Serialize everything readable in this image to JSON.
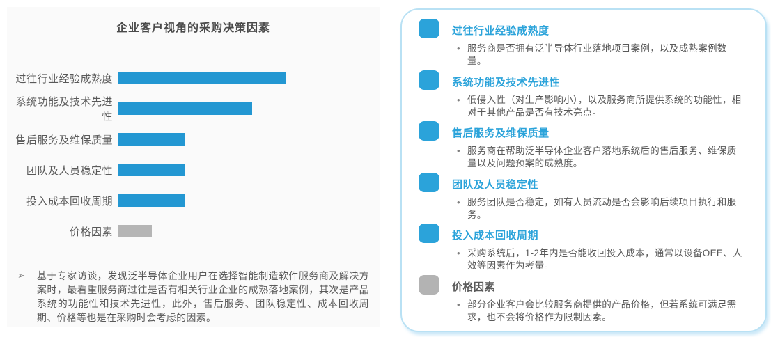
{
  "left_card": {
    "note_arrow_glyph": "➢",
    "note": "基于专家访谈，发现泛半导体企业用户在选择智能制造软件服务商及解决方案时，最看重服务商过往是否有相关行业企业的成熟落地案例，其次是产品系统的功能性和技术先进性，此外，售后服务、团队稳定性、成本回收周期、价格等也是在采购时会考虑的因素。"
  },
  "chart_data": {
    "type": "bar",
    "orientation": "horizontal",
    "title": "企业客户视角的采购决策因素",
    "categories": [
      "过往行业经验成熟度",
      "系统功能及技术先进性",
      "售后服务及维保质量",
      "团队及人员稳定性",
      "投入成本回收周期",
      "价格因素"
    ],
    "values": [
      5,
      4,
      2,
      2,
      2,
      1
    ],
    "value_note": "relative importance estimated from bar lengths; no axis ticks or data labels shown",
    "xlim": [
      0,
      5.2
    ],
    "grid": false,
    "legend": false,
    "bar_colors": [
      "#2397d2",
      "#2397d2",
      "#2397d2",
      "#2397d2",
      "#2397d2",
      "#b5b5b5"
    ]
  },
  "colors": {
    "accent_blue": "#2ba3da",
    "bar_blue": "#2397d2",
    "neutral_gray": "#b5b5b5",
    "text_gray": "#595959",
    "panel_border": "#b9e1f4",
    "left_card_bg": "#fafafa"
  },
  "right_panel": {
    "bullet_glyph": "•",
    "items": [
      {
        "title": "过往行业经验成熟度",
        "title_color": "#2ba3da",
        "icon": "rounded-square",
        "icon_color": "#2ba3da",
        "bullets": [
          "服务商是否拥有泛半导体行业落地项目案例，以及成熟案例数量。"
        ]
      },
      {
        "title": "系统功能及技术先进性",
        "title_color": "#2ba3da",
        "icon": "rounded-square",
        "icon_color": "#2ba3da",
        "bullets": [
          "低侵入性（对生产影响小），以及服务商所提供系统的功能性，相对于其他产品是否有技术亮点。"
        ]
      },
      {
        "title": "售后服务及维保质量",
        "title_color": "#2ba3da",
        "icon": "rounded-square",
        "icon_color": "#2ba3da",
        "bullets": [
          "服务商在帮助泛半导体企业客户落地系统后的售后服务、维保质量以及问题预案的成熟度。"
        ]
      },
      {
        "title": "团队及人员稳定性",
        "title_color": "#2ba3da",
        "icon": "rounded-square",
        "icon_color": "#2ba3da",
        "bullets": [
          "服务团队是否稳定，如有人员流动是否会影响后续项目执行和服务。"
        ]
      },
      {
        "title": "投入成本回收周期",
        "title_color": "#2ba3da",
        "icon": "rounded-square",
        "icon_color": "#2ba3da",
        "bullets": [
          "采购系统后，1-2年内是否能收回投入成本，通常以设备OEE、人效等因素作为考量。"
        ]
      },
      {
        "title": "价格因素",
        "title_color": "#595959",
        "icon": "rounded-square",
        "icon_color": "#b3b3b3",
        "bullets": [
          "部分企业客户会比较服务商提供的产品价格，但若系统可满足需求，也不会将价格作为限制因素。"
        ]
      }
    ]
  }
}
